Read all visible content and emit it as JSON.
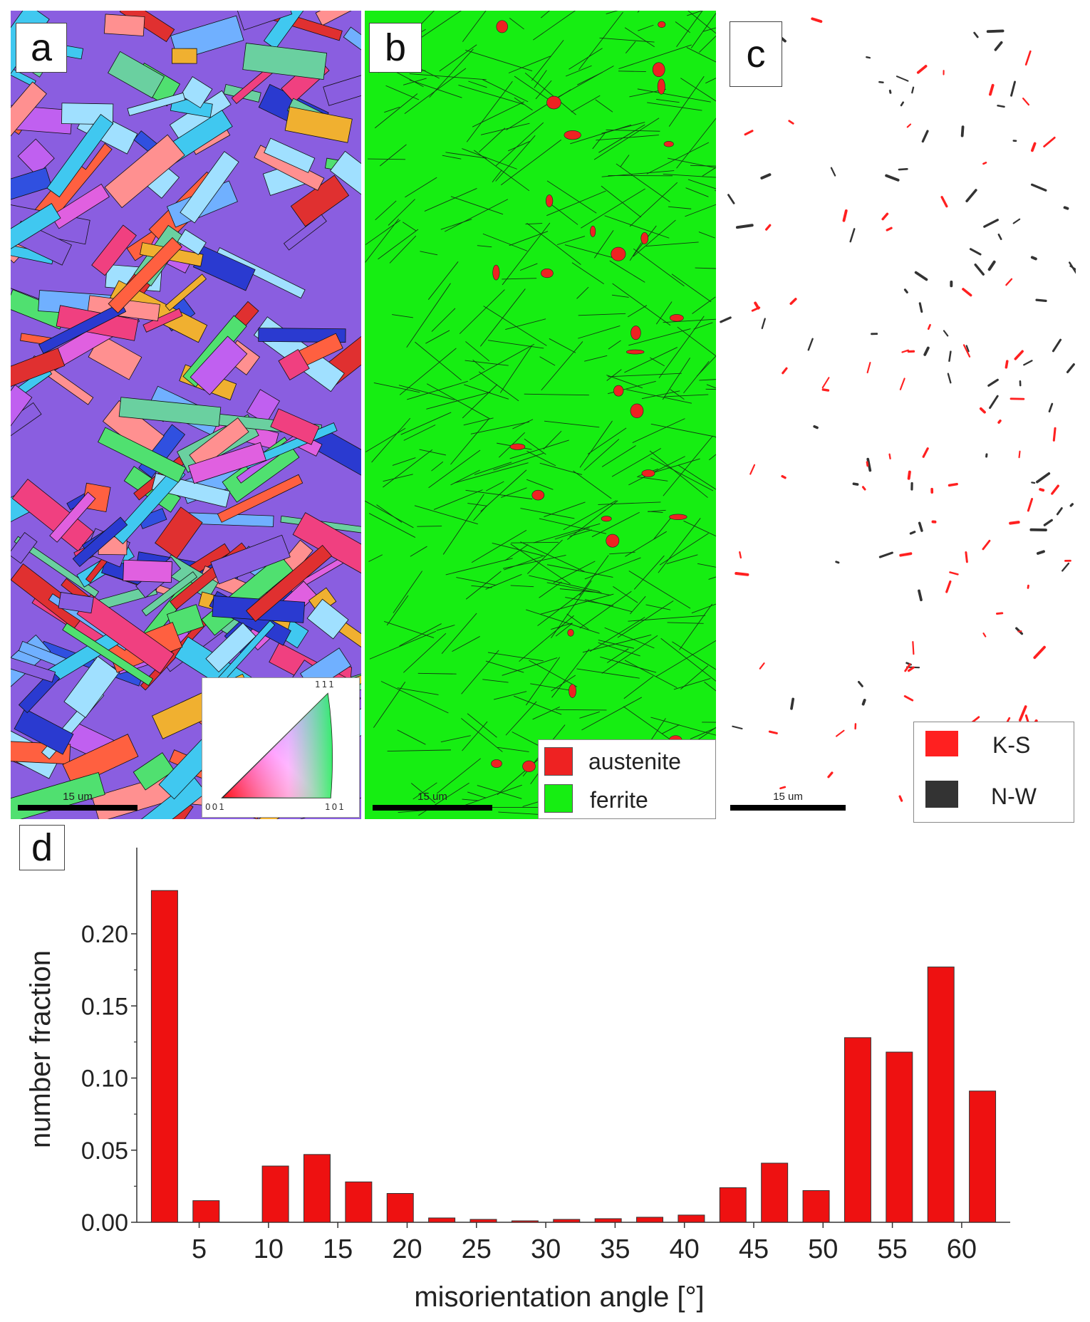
{
  "panels": {
    "a": {
      "label": "a",
      "scale": "15 um",
      "ipf_key": {
        "top": "111",
        "left": "001",
        "right": "101"
      }
    },
    "b": {
      "label": "b",
      "scale": "15 um",
      "legend": [
        {
          "label": "austenite",
          "color": "#ee2222"
        },
        {
          "label": "ferrite",
          "color": "#16ee12"
        }
      ]
    },
    "c": {
      "label": "c",
      "scale": "15 um",
      "legend": [
        {
          "label": "K-S",
          "color": "#ff2020"
        },
        {
          "label": "N-W",
          "color": "#333333"
        }
      ]
    },
    "d": {
      "label": "d"
    }
  },
  "chart_data": {
    "type": "bar",
    "categories": [
      "1-4",
      "4-7",
      "9-12",
      "12-15",
      "15-18",
      "18-21",
      "21-24",
      "24-27",
      "27-30",
      "30-33",
      "33-36",
      "36-39",
      "39-42",
      "42-45",
      "45-48",
      "48-51",
      "51-54",
      "54-57",
      "57-60",
      "60-63"
    ],
    "bin_centers": [
      2.5,
      5.5,
      10.5,
      13.5,
      16.5,
      19.5,
      22.5,
      25.5,
      28.5,
      31.5,
      34.5,
      37.5,
      40.5,
      43.5,
      46.5,
      49.5,
      52.5,
      55.5,
      58.5,
      61.5
    ],
    "values": [
      0.23,
      0.015,
      0.039,
      0.047,
      0.028,
      0.02,
      0.003,
      0.002,
      0.001,
      0.002,
      0.0025,
      0.0035,
      0.005,
      0.024,
      0.041,
      0.022,
      0.128,
      0.118,
      0.177,
      0.091
    ],
    "xlabel": "misorientation angle [°]",
    "ylabel": "number fraction",
    "xlim": [
      0.5,
      63.5
    ],
    "ylim": [
      0,
      0.24
    ],
    "xticks": [
      5,
      10,
      15,
      20,
      25,
      30,
      35,
      40,
      45,
      50,
      55,
      60
    ],
    "yticks": [
      "0.00",
      "0.05",
      "0.10",
      "0.15",
      "0.20"
    ],
    "bar_color": "#ee1111",
    "grid": false
  }
}
